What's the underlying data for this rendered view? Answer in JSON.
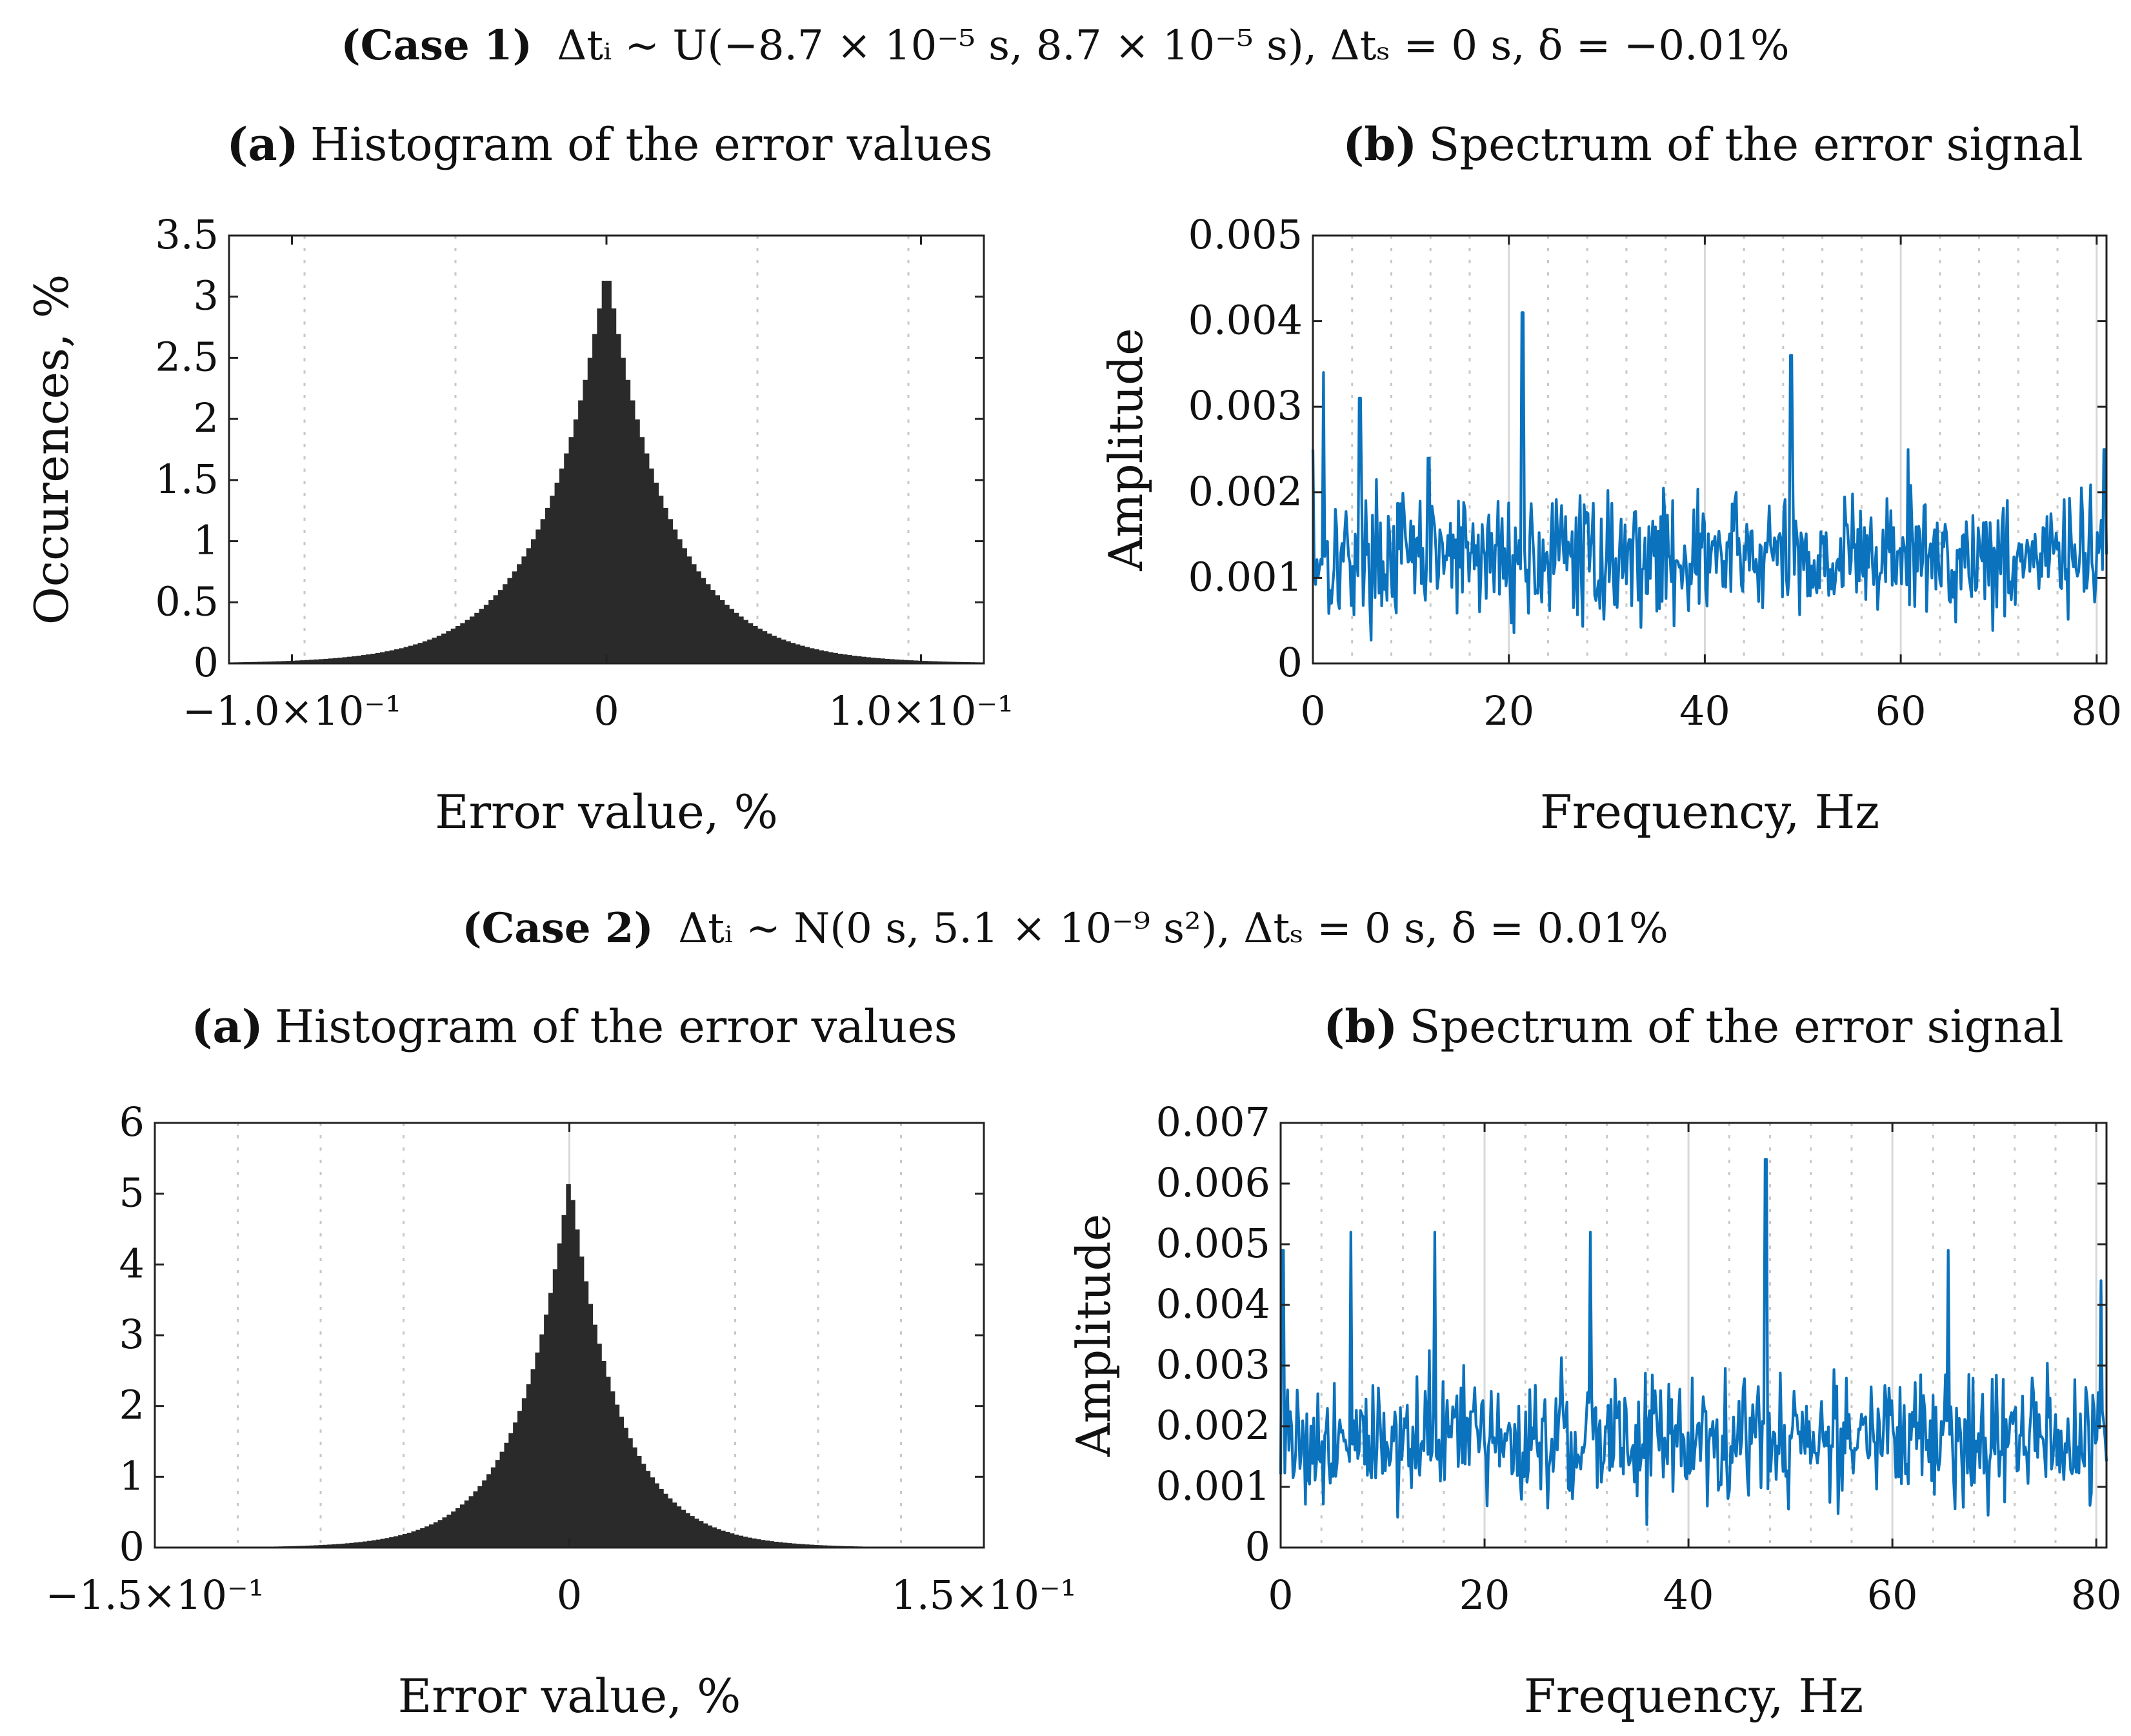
{
  "cases": [
    {
      "title_bold": "(Case 1)",
      "title_rest": "Δtᵢ ~ U(−8.7 × 10⁻⁵ s, 8.7 × 10⁻⁵ s), Δtₛ = 0 s, δ = −0.01%"
    },
    {
      "title_bold": "(Case 2)",
      "title_rest": "Δtᵢ ~ N(0 s, 5.1 × 10⁻⁹ s²), Δtₛ = 0 s, δ = 0.01%"
    }
  ],
  "colors": {
    "bars": "#2a2a2a",
    "line": "#0b72bd",
    "frame": "#222222",
    "grid": "#c8c8c8"
  },
  "chart_data": [
    {
      "id": "case1-hist",
      "type": "bar",
      "title_bold": "(a)",
      "title": "Histogram of the error values",
      "xlabel": "Error value, %",
      "ylabel": "Occurences, %",
      "xlim": [
        -0.12,
        0.12
      ],
      "ylim": [
        0,
        3.5
      ],
      "yticks": [
        0,
        0.5,
        1,
        1.5,
        2,
        2.5,
        3,
        3.5
      ],
      "ytick_labels": [
        "0",
        "0.5",
        "1",
        "1.5",
        "2",
        "2.5",
        "3",
        "3.5"
      ],
      "xticks": [
        -0.1,
        0,
        0.1
      ],
      "xtick_labels": [
        "−1.0×10⁻¹",
        "0",
        "1.0×10⁻¹"
      ],
      "xgrid_dotted": [
        -0.096,
        -0.048,
        0.048,
        0.096
      ],
      "peak": 3.25,
      "decay": 0.02,
      "bin_width": 0.0015,
      "grid": true
    },
    {
      "id": "case1-spec",
      "type": "line",
      "title_bold": "(b)",
      "title": "Spectrum of the error signal",
      "xlabel": "Frequency, Hz",
      "ylabel": "Amplitude",
      "xlim": [
        0,
        81
      ],
      "ylim": [
        0,
        0.005
      ],
      "yticks": [
        0,
        0.001,
        0.002,
        0.003,
        0.004,
        0.005
      ],
      "ytick_labels": [
        "0",
        "0.001",
        "0.002",
        "0.003",
        "0.004",
        "0.005"
      ],
      "xticks": [
        0,
        20,
        40,
        60,
        80
      ],
      "xtick_labels": [
        "0",
        "20",
        "40",
        "60",
        "80"
      ],
      "xgrid_dotted": [
        4,
        8,
        12,
        16,
        24,
        28,
        32,
        36,
        44,
        48,
        52,
        56,
        64,
        68,
        72,
        76
      ],
      "xgrid_solid": [
        20,
        40,
        60,
        80
      ],
      "seed": 17,
      "n_points": 600,
      "mean": 0.00125,
      "spread": 0.00055,
      "spikes": [
        [
          0.0,
          0.0025
        ],
        [
          1.1,
          0.0034
        ],
        [
          4.8,
          0.0031
        ],
        [
          11.8,
          0.0024
        ],
        [
          21.4,
          0.0041
        ],
        [
          48.8,
          0.0036
        ],
        [
          60.7,
          0.0025
        ],
        [
          80.8,
          0.0025
        ]
      ],
      "series": [
        {
          "name": "Amplitude",
          "color": "#0b72bd"
        }
      ],
      "grid": true
    },
    {
      "id": "case2-hist",
      "type": "bar",
      "title_bold": "(a)",
      "title": "Histogram of the error values",
      "xlabel": "Error value, %",
      "ylabel": "Occurences, %",
      "xlim": [
        -0.15,
        0.15
      ],
      "ylim": [
        0,
        6
      ],
      "yticks": [
        0,
        1,
        2,
        3,
        4,
        5,
        6
      ],
      "ytick_labels": [
        "0",
        "1",
        "2",
        "3",
        "4",
        "5",
        "6"
      ],
      "xticks": [
        -0.15,
        0,
        0.15
      ],
      "xtick_labels": [
        "−1.5×10⁻¹",
        "0",
        "1.5×10⁻¹"
      ],
      "xgrid_dotted": [
        -0.12,
        -0.09,
        -0.06,
        0.06,
        0.09,
        0.12
      ],
      "xgrid_solid": [
        0
      ],
      "peak": 5.25,
      "decay": 0.018,
      "bin_width": 0.0016,
      "grid": true
    },
    {
      "id": "case2-spec",
      "type": "line",
      "title_bold": "(b)",
      "title": "Spectrum of the error signal",
      "xlabel": "Frequency, Hz",
      "ylabel": "Amplitude",
      "xlim": [
        0,
        81
      ],
      "ylim": [
        0,
        0.007
      ],
      "yticks": [
        0,
        0.001,
        0.002,
        0.003,
        0.004,
        0.005,
        0.006,
        0.007
      ],
      "ytick_labels": [
        "0",
        "0.001",
        "0.002",
        "0.003",
        "0.004",
        "0.005",
        "0.006",
        "0.007"
      ],
      "xticks": [
        0,
        20,
        40,
        60,
        80
      ],
      "xtick_labels": [
        "0",
        "20",
        "40",
        "60",
        "80"
      ],
      "xgrid_dotted": [
        4,
        8,
        12,
        16,
        24,
        28,
        32,
        36,
        44,
        48,
        52,
        56,
        64,
        68,
        72,
        76
      ],
      "xgrid_solid": [
        20,
        40,
        60,
        80
      ],
      "seed": 91,
      "n_points": 600,
      "mean": 0.0018,
      "spread": 0.0008,
      "spikes": [
        [
          0.2,
          0.0049
        ],
        [
          6.9,
          0.0052
        ],
        [
          15.1,
          0.0052
        ],
        [
          30.4,
          0.0052
        ],
        [
          47.6,
          0.0064
        ],
        [
          65.5,
          0.0049
        ],
        [
          80.5,
          0.0044
        ]
      ],
      "series": [
        {
          "name": "Amplitude",
          "color": "#0b72bd"
        }
      ],
      "grid": true
    }
  ]
}
